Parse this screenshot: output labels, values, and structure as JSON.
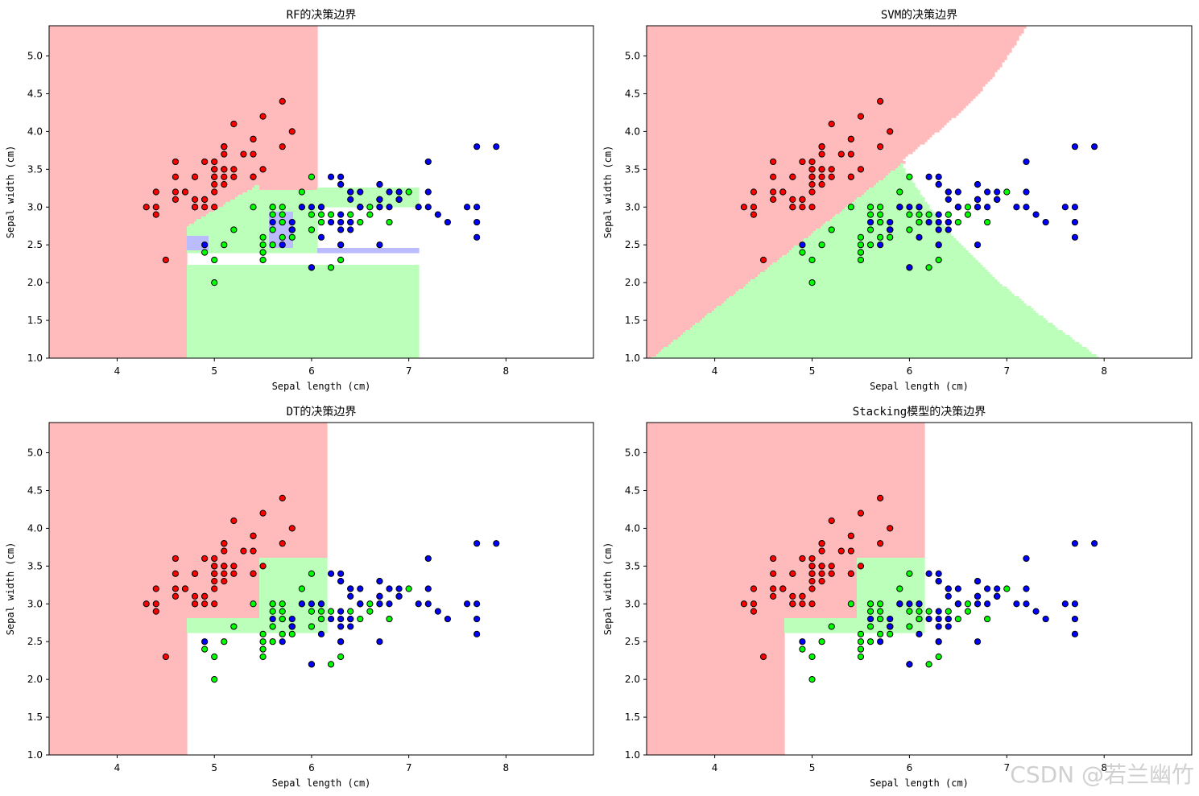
{
  "chart_data": {
    "type": "scatter",
    "colors": {
      "class0": "#ff0000",
      "class1": "#00ff00",
      "class2": "#0000ff",
      "region0": "#ffbbbb",
      "region1": "#bbffbb",
      "region2": "#bbbbff"
    },
    "xlabel": "Sepal length (cm)",
    "ylabel": "Sepal width (cm)",
    "xlim": [
      3.3,
      8.9
    ],
    "ylim": [
      1.0,
      5.4
    ],
    "xticks": [
      4,
      5,
      6,
      7,
      8
    ],
    "yticks": [
      1.0,
      1.5,
      2.0,
      2.5,
      3.0,
      3.5,
      4.0,
      4.5,
      5.0
    ],
    "points": [
      [
        5.1,
        3.5,
        0
      ],
      [
        4.9,
        3.0,
        0
      ],
      [
        4.7,
        3.2,
        0
      ],
      [
        4.6,
        3.1,
        0
      ],
      [
        5.0,
        3.6,
        0
      ],
      [
        5.4,
        3.9,
        0
      ],
      [
        4.6,
        3.4,
        0
      ],
      [
        5.0,
        3.4,
        0
      ],
      [
        4.4,
        2.9,
        0
      ],
      [
        4.9,
        3.1,
        0
      ],
      [
        5.4,
        3.7,
        0
      ],
      [
        4.8,
        3.4,
        0
      ],
      [
        4.8,
        3.0,
        0
      ],
      [
        4.3,
        3.0,
        0
      ],
      [
        5.8,
        4.0,
        0
      ],
      [
        5.7,
        4.4,
        0
      ],
      [
        5.4,
        3.9,
        0
      ],
      [
        5.1,
        3.5,
        0
      ],
      [
        5.7,
        3.8,
        0
      ],
      [
        5.1,
        3.8,
        0
      ],
      [
        5.4,
        3.4,
        0
      ],
      [
        5.1,
        3.7,
        0
      ],
      [
        4.6,
        3.6,
        0
      ],
      [
        5.1,
        3.3,
        0
      ],
      [
        4.8,
        3.4,
        0
      ],
      [
        5.0,
        3.0,
        0
      ],
      [
        5.0,
        3.4,
        0
      ],
      [
        5.2,
        3.5,
        0
      ],
      [
        5.2,
        3.4,
        0
      ],
      [
        4.7,
        3.2,
        0
      ],
      [
        4.8,
        3.1,
        0
      ],
      [
        5.4,
        3.4,
        0
      ],
      [
        5.2,
        4.1,
        0
      ],
      [
        5.5,
        4.2,
        0
      ],
      [
        4.9,
        3.1,
        0
      ],
      [
        5.0,
        3.2,
        0
      ],
      [
        5.5,
        3.5,
        0
      ],
      [
        4.9,
        3.6,
        0
      ],
      [
        4.4,
        3.0,
        0
      ],
      [
        5.1,
        3.4,
        0
      ],
      [
        5.0,
        3.5,
        0
      ],
      [
        4.5,
        2.3,
        0
      ],
      [
        4.4,
        3.2,
        0
      ],
      [
        5.0,
        3.5,
        0
      ],
      [
        5.1,
        3.8,
        0
      ],
      [
        4.8,
        3.0,
        0
      ],
      [
        5.1,
        3.8,
        0
      ],
      [
        4.6,
        3.2,
        0
      ],
      [
        5.3,
        3.7,
        0
      ],
      [
        5.0,
        3.3,
        0
      ],
      [
        7.0,
        3.2,
        1
      ],
      [
        6.4,
        3.2,
        1
      ],
      [
        6.9,
        3.1,
        1
      ],
      [
        5.5,
        2.3,
        1
      ],
      [
        6.5,
        2.8,
        1
      ],
      [
        5.7,
        2.8,
        1
      ],
      [
        6.3,
        3.3,
        1
      ],
      [
        4.9,
        2.4,
        1
      ],
      [
        6.6,
        2.9,
        1
      ],
      [
        5.2,
        2.7,
        1
      ],
      [
        5.0,
        2.0,
        1
      ],
      [
        5.9,
        3.0,
        1
      ],
      [
        6.0,
        2.2,
        1
      ],
      [
        6.1,
        2.9,
        1
      ],
      [
        5.6,
        2.9,
        1
      ],
      [
        6.7,
        3.1,
        1
      ],
      [
        5.6,
        3.0,
        1
      ],
      [
        5.8,
        2.7,
        1
      ],
      [
        6.2,
        2.2,
        1
      ],
      [
        5.6,
        2.5,
        1
      ],
      [
        5.9,
        3.2,
        1
      ],
      [
        6.1,
        2.8,
        1
      ],
      [
        6.3,
        2.5,
        1
      ],
      [
        6.1,
        2.8,
        1
      ],
      [
        6.4,
        2.9,
        1
      ],
      [
        6.6,
        3.0,
        1
      ],
      [
        6.8,
        2.8,
        1
      ],
      [
        6.7,
        3.0,
        1
      ],
      [
        6.0,
        2.9,
        1
      ],
      [
        5.7,
        2.6,
        1
      ],
      [
        5.5,
        2.4,
        1
      ],
      [
        5.5,
        2.4,
        1
      ],
      [
        5.8,
        2.7,
        1
      ],
      [
        6.0,
        2.7,
        1
      ],
      [
        5.4,
        3.0,
        1
      ],
      [
        6.0,
        3.4,
        1
      ],
      [
        6.7,
        3.1,
        1
      ],
      [
        6.3,
        2.3,
        1
      ],
      [
        5.6,
        3.0,
        1
      ],
      [
        5.5,
        2.5,
        1
      ],
      [
        5.5,
        2.6,
        1
      ],
      [
        6.1,
        3.0,
        1
      ],
      [
        5.8,
        2.6,
        1
      ],
      [
        5.0,
        2.3,
        1
      ],
      [
        5.6,
        2.7,
        1
      ],
      [
        5.7,
        3.0,
        1
      ],
      [
        5.7,
        2.9,
        1
      ],
      [
        6.2,
        2.9,
        1
      ],
      [
        5.1,
        2.5,
        1
      ],
      [
        5.7,
        2.8,
        1
      ],
      [
        6.3,
        3.3,
        2
      ],
      [
        5.8,
        2.7,
        2
      ],
      [
        7.1,
        3.0,
        2
      ],
      [
        6.3,
        2.9,
        2
      ],
      [
        6.5,
        3.0,
        2
      ],
      [
        7.6,
        3.0,
        2
      ],
      [
        4.9,
        2.5,
        2
      ],
      [
        7.3,
        2.9,
        2
      ],
      [
        6.7,
        2.5,
        2
      ],
      [
        7.2,
        3.6,
        2
      ],
      [
        6.5,
        3.2,
        2
      ],
      [
        6.4,
        2.7,
        2
      ],
      [
        6.8,
        3.0,
        2
      ],
      [
        5.7,
        2.5,
        2
      ],
      [
        5.8,
        2.8,
        2
      ],
      [
        6.4,
        3.2,
        2
      ],
      [
        6.5,
        3.0,
        2
      ],
      [
        7.7,
        3.8,
        2
      ],
      [
        7.7,
        2.6,
        2
      ],
      [
        6.0,
        2.2,
        2
      ],
      [
        6.9,
        3.2,
        2
      ],
      [
        5.6,
        2.8,
        2
      ],
      [
        7.7,
        2.8,
        2
      ],
      [
        6.3,
        2.7,
        2
      ],
      [
        6.7,
        3.3,
        2
      ],
      [
        7.2,
        3.2,
        2
      ],
      [
        6.2,
        2.8,
        2
      ],
      [
        6.1,
        3.0,
        2
      ],
      [
        6.4,
        2.8,
        2
      ],
      [
        7.2,
        3.0,
        2
      ],
      [
        7.4,
        2.8,
        2
      ],
      [
        7.9,
        3.8,
        2
      ],
      [
        6.4,
        2.8,
        2
      ],
      [
        6.3,
        2.8,
        2
      ],
      [
        6.1,
        2.6,
        2
      ],
      [
        7.7,
        3.0,
        2
      ],
      [
        6.3,
        3.4,
        2
      ],
      [
        6.4,
        3.1,
        2
      ],
      [
        6.0,
        3.0,
        2
      ],
      [
        6.9,
        3.1,
        2
      ],
      [
        6.7,
        3.1,
        2
      ],
      [
        6.9,
        3.1,
        2
      ],
      [
        5.8,
        2.7,
        2
      ],
      [
        6.8,
        3.2,
        2
      ],
      [
        6.7,
        3.3,
        2
      ],
      [
        6.7,
        3.0,
        2
      ],
      [
        6.3,
        2.5,
        2
      ],
      [
        6.5,
        3.0,
        2
      ],
      [
        6.2,
        3.4,
        2
      ],
      [
        5.9,
        3.0,
        2
      ]
    ],
    "panels": [
      {
        "title": "RF的决策边界",
        "model": "rf"
      },
      {
        "title": "SVM的决策边界",
        "model": "svm"
      },
      {
        "title": "DT的决策边界",
        "model": "dt"
      },
      {
        "title": "Stacking模型的决策边界",
        "model": "stacking"
      }
    ]
  },
  "watermark": "CSDN @若兰幽竹"
}
